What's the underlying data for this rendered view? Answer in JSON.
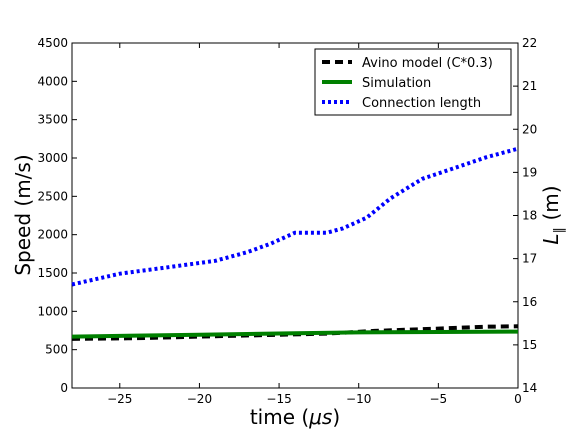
{
  "chart_data": {
    "type": "line",
    "xlabel_text": "time (",
    "xlabel_mu": "μs",
    "xlabel_close": ")",
    "ylabel": "Speed (m/s)",
    "y2label_main": "L",
    "y2label_sub": "∥",
    "y2label_unit": " (m)",
    "xlim": [
      -28,
      0
    ],
    "ylim": [
      0,
      4500
    ],
    "y2lim": [
      14,
      22
    ],
    "xticks": [
      -25,
      -20,
      -15,
      -10,
      -5,
      0
    ],
    "xtick_labels": [
      "−25",
      "−20",
      "−15",
      "−10",
      "−5",
      "0"
    ],
    "yticks": [
      0,
      500,
      1000,
      1500,
      2000,
      2500,
      3000,
      3500,
      4000,
      4500
    ],
    "y2ticks": [
      14,
      15,
      16,
      17,
      18,
      19,
      20,
      21,
      22
    ],
    "legend_position": "top-right",
    "series": [
      {
        "name": "Avino model (C*0.3)",
        "axis": "left",
        "style": "dashed",
        "color": "#000000",
        "x": [
          -28,
          -24,
          -20,
          -16,
          -12,
          -9,
          -5,
          -2,
          0
        ],
        "y": [
          640,
          650,
          670,
          690,
          710,
          745,
          775,
          800,
          805
        ]
      },
      {
        "name": "Simulation",
        "axis": "left",
        "style": "solid",
        "color": "#008000",
        "x": [
          -28,
          -20,
          -14,
          -10,
          -5,
          0
        ],
        "y": [
          670,
          695,
          715,
          725,
          730,
          735
        ]
      },
      {
        "name": "Connection length",
        "axis": "right",
        "style": "dotted",
        "color": "#0000ff",
        "x": [
          -28,
          -25,
          -22,
          -19,
          -17,
          -15.5,
          -14,
          -12,
          -11,
          -9.5,
          -8,
          -6,
          -4,
          -2,
          0
        ],
        "y": [
          16.4,
          16.65,
          16.8,
          16.95,
          17.15,
          17.35,
          17.6,
          17.6,
          17.7,
          17.95,
          18.4,
          18.85,
          19.1,
          19.35,
          19.55
        ]
      }
    ]
  }
}
